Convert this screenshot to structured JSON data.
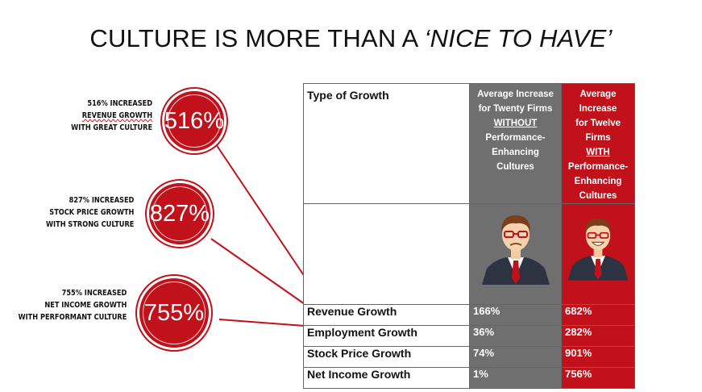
{
  "title": {
    "main": "CULTURE IS MORE THAN A ",
    "italic": "‘NICE TO HAVE’"
  },
  "stats": [
    {
      "lines": [
        "516% INCREASED",
        "REVENUE GROWTH",
        "WITH GREAT CULTURE"
      ],
      "value": "516%"
    },
    {
      "lines": [
        "827% INCREASED",
        "STOCK PRICE GROWTH",
        "WITH STRONG CULTURE"
      ],
      "value": "827%"
    },
    {
      "lines": [
        "755% INCREASED",
        "NET INCOME GROWTH",
        "WITH PERFORMANT CULTURE"
      ],
      "value": "755%"
    }
  ],
  "table": {
    "col1_header": "Type of Growth",
    "col2_header": {
      "line1": "Average Increase",
      "line2": "for Twenty Firms",
      "emph": "WITHOUT",
      "line3": "Performance-",
      "line4": "Enhancing",
      "line5": "Cultures"
    },
    "col3_header": {
      "line1": "Average Increase",
      "line2": "for Twelve Firms",
      "emph": "WITH",
      "line3": "Performance-",
      "line4": "Enhancing",
      "line5": "Cultures"
    },
    "rows": [
      {
        "label": "Revenue Growth",
        "without": "166%",
        "with": "682%"
      },
      {
        "label": "Employment Growth",
        "without": "36%",
        "with": "282%"
      },
      {
        "label": "Stock Price Growth",
        "without": "74%",
        "with": "901%"
      },
      {
        "label": "Net Income Growth",
        "without": "1%",
        "with": "756%"
      }
    ]
  },
  "colors": {
    "accent": "#c1121b",
    "gray": "#6f6f6f"
  }
}
